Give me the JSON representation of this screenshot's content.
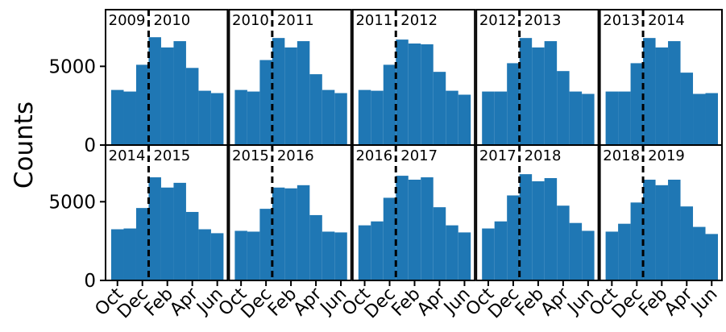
{
  "chart_data": [
    {
      "type": "bar",
      "annotations": [
        "2009",
        "2010"
      ],
      "values": [
        3500,
        3400,
        5100,
        6850,
        6200,
        6600,
        4900,
        3450,
        3300
      ],
      "color": "#1f77b4",
      "ylim": [
        0,
        8600
      ],
      "yticks": [
        0,
        5000
      ],
      "ylabel": "Counts"
    },
    {
      "type": "bar",
      "annotations": [
        "2010",
        "2011"
      ],
      "values": [
        3500,
        3400,
        5400,
        6800,
        6200,
        6600,
        4500,
        3500,
        3300
      ],
      "color": "#1f77b4",
      "ylim": [
        0,
        8600
      ]
    },
    {
      "type": "bar",
      "annotations": [
        "2011",
        "2012"
      ],
      "values": [
        3500,
        3450,
        5100,
        6700,
        6450,
        6400,
        4650,
        3450,
        3200
      ],
      "color": "#1f77b4",
      "ylim": [
        0,
        8600
      ]
    },
    {
      "type": "bar",
      "annotations": [
        "2012",
        "2013"
      ],
      "values": [
        3400,
        3400,
        5200,
        6800,
        6200,
        6600,
        4700,
        3400,
        3250
      ],
      "color": "#1f77b4",
      "ylim": [
        0,
        8600
      ]
    },
    {
      "type": "bar",
      "annotations": [
        "2013",
        "2014"
      ],
      "values": [
        3400,
        3400,
        5200,
        6800,
        6200,
        6600,
        4600,
        3250,
        3300
      ],
      "color": "#1f77b4",
      "ylim": [
        0,
        8600
      ]
    },
    {
      "type": "bar",
      "annotations": [
        "2014",
        "2015"
      ],
      "categories": [
        "Oct",
        null,
        "Dec",
        null,
        "Feb",
        null,
        "Apr",
        null,
        "Jun"
      ],
      "values": [
        3250,
        3300,
        4600,
        6550,
        5900,
        6200,
        4350,
        3250,
        3000
      ],
      "color": "#1f77b4",
      "ylim": [
        0,
        8600
      ],
      "yticks": [
        0,
        5000
      ]
    },
    {
      "type": "bar",
      "annotations": [
        "2015",
        "2016"
      ],
      "categories": [
        "Oct",
        null,
        "Dec",
        null,
        "Feb",
        null,
        "Apr",
        null,
        "Jun"
      ],
      "values": [
        3150,
        3100,
        4550,
        5900,
        5850,
        6050,
        4150,
        3100,
        3050
      ],
      "color": "#1f77b4",
      "ylim": [
        0,
        8600
      ]
    },
    {
      "type": "bar",
      "annotations": [
        "2016",
        "2017"
      ],
      "categories": [
        "Oct",
        null,
        "Dec",
        null,
        "Feb",
        null,
        "Apr",
        null,
        "Jun"
      ],
      "values": [
        3500,
        3750,
        5250,
        6650,
        6400,
        6550,
        4650,
        3500,
        3050
      ],
      "color": "#1f77b4",
      "ylim": [
        0,
        8600
      ]
    },
    {
      "type": "bar",
      "annotations": [
        "2017",
        "2018"
      ],
      "categories": [
        "Oct",
        null,
        "Dec",
        null,
        "Feb",
        null,
        "Apr",
        null,
        "Jun"
      ],
      "values": [
        3300,
        3750,
        5400,
        6750,
        6300,
        6500,
        4750,
        3650,
        3150
      ],
      "color": "#1f77b4",
      "ylim": [
        0,
        8600
      ]
    },
    {
      "type": "bar",
      "annotations": [
        "2018",
        "2019"
      ],
      "categories": [
        "Oct",
        null,
        "Dec",
        null,
        "Feb",
        null,
        "Apr",
        null,
        "Jun"
      ],
      "values": [
        3100,
        3600,
        4950,
        6400,
        6050,
        6400,
        4700,
        3400,
        2950
      ],
      "color": "#1f77b4",
      "ylim": [
        0,
        8600
      ]
    }
  ]
}
